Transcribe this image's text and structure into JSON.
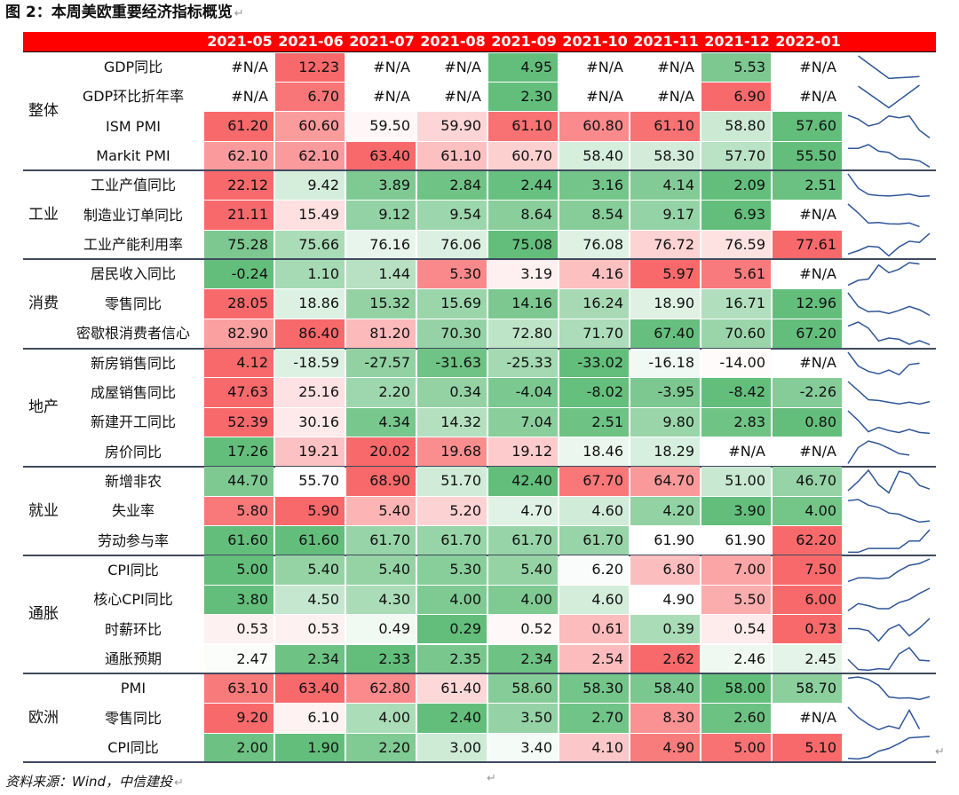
{
  "caption": "图 2：本周美欧重要经济指标概览",
  "paragraph_mark": "↵",
  "source_note": "资料来源：Wind，中信建投",
  "months": [
    "2021-05",
    "2021-06",
    "2021-07",
    "2021-08",
    "2021-09",
    "2021-10",
    "2021-11",
    "2021-12",
    "2022-01"
  ],
  "groups": [
    {
      "name": "整体",
      "rows": [
        {
          "label": "GDP同比",
          "values": [
            "#N/A",
            "12.23",
            "#N/A",
            "#N/A",
            "4.95",
            "#N/A",
            "#N/A",
            "5.53",
            "#N/A"
          ]
        },
        {
          "label": "GDP环比折年率",
          "values": [
            "#N/A",
            "6.70",
            "#N/A",
            "#N/A",
            "2.30",
            "#N/A",
            "#N/A",
            "6.90",
            "#N/A"
          ]
        },
        {
          "label": "ISM PMI",
          "values": [
            "61.20",
            "60.60",
            "59.50",
            "59.90",
            "61.10",
            "60.80",
            "61.10",
            "58.80",
            "57.60"
          ]
        },
        {
          "label": "Markit PMI",
          "values": [
            "62.10",
            "62.10",
            "63.40",
            "61.10",
            "60.70",
            "58.40",
            "58.30",
            "57.70",
            "55.50"
          ]
        }
      ]
    },
    {
      "name": "工业",
      "rows": [
        {
          "label": "工业产值同比",
          "values": [
            "22.12",
            "9.42",
            "3.89",
            "2.84",
            "2.44",
            "3.16",
            "4.14",
            "2.09",
            "2.51"
          ]
        },
        {
          "label": "制造业订单同比",
          "values": [
            "21.11",
            "15.49",
            "9.12",
            "9.54",
            "8.64",
            "8.54",
            "9.17",
            "6.93",
            "#N/A"
          ]
        },
        {
          "label": "工业产能利用率",
          "values": [
            "75.28",
            "75.66",
            "76.16",
            "76.06",
            "75.08",
            "76.08",
            "76.72",
            "76.59",
            "77.61"
          ]
        }
      ]
    },
    {
      "name": "消费",
      "rows": [
        {
          "label": "居民收入同比",
          "values": [
            "-0.24",
            "1.10",
            "1.44",
            "5.30",
            "3.19",
            "4.16",
            "5.97",
            "5.61",
            "#N/A"
          ]
        },
        {
          "label": "零售同比",
          "values": [
            "28.05",
            "18.86",
            "15.32",
            "15.69",
            "14.16",
            "16.24",
            "18.90",
            "16.71",
            "12.96"
          ]
        },
        {
          "label": "密歇根消费者信心",
          "values": [
            "82.90",
            "86.40",
            "81.20",
            "70.30",
            "72.80",
            "71.70",
            "67.40",
            "70.60",
            "67.20"
          ]
        }
      ]
    },
    {
      "name": "地产",
      "rows": [
        {
          "label": "新房销售同比",
          "values": [
            "4.12",
            "-18.59",
            "-27.57",
            "-31.63",
            "-25.33",
            "-33.02",
            "-16.18",
            "-14.00",
            "#N/A"
          ]
        },
        {
          "label": "成屋销售同比",
          "values": [
            "47.63",
            "25.16",
            "2.20",
            "0.34",
            "-4.04",
            "-8.02",
            "-3.95",
            "-8.42",
            "-2.26"
          ]
        },
        {
          "label": "新建开工同比",
          "values": [
            "52.39",
            "30.16",
            "4.34",
            "14.32",
            "7.04",
            "2.51",
            "9.80",
            "2.83",
            "0.80"
          ]
        },
        {
          "label": "房价同比",
          "values": [
            "17.26",
            "19.21",
            "20.02",
            "19.68",
            "19.12",
            "18.46",
            "18.29",
            "#N/A",
            "#N/A"
          ]
        }
      ]
    },
    {
      "name": "就业",
      "rows": [
        {
          "label": "新增非农",
          "values": [
            "44.70",
            "55.70",
            "68.90",
            "51.70",
            "42.40",
            "67.70",
            "64.70",
            "51.00",
            "46.70"
          ]
        },
        {
          "label": "失业率",
          "values": [
            "5.80",
            "5.90",
            "5.40",
            "5.20",
            "4.70",
            "4.60",
            "4.20",
            "3.90",
            "4.00"
          ]
        },
        {
          "label": "劳动参与率",
          "values": [
            "61.60",
            "61.60",
            "61.70",
            "61.70",
            "61.70",
            "61.70",
            "61.90",
            "61.90",
            "62.20"
          ]
        }
      ]
    },
    {
      "name": "通胀",
      "rows": [
        {
          "label": "CPI同比",
          "values": [
            "5.00",
            "5.40",
            "5.40",
            "5.30",
            "5.40",
            "6.20",
            "6.80",
            "7.00",
            "7.50"
          ]
        },
        {
          "label": "核心CPI同比",
          "values": [
            "3.80",
            "4.50",
            "4.30",
            "4.00",
            "4.00",
            "4.60",
            "4.90",
            "5.50",
            "6.00"
          ]
        },
        {
          "label": "时薪环比",
          "values": [
            "0.53",
            "0.53",
            "0.49",
            "0.29",
            "0.52",
            "0.61",
            "0.39",
            "0.54",
            "0.73"
          ]
        },
        {
          "label": "通胀预期",
          "values": [
            "2.47",
            "2.34",
            "2.33",
            "2.35",
            "2.34",
            "2.54",
            "2.62",
            "2.46",
            "2.45"
          ]
        }
      ]
    },
    {
      "name": "欧洲",
      "rows": [
        {
          "label": "PMI",
          "values": [
            "63.10",
            "63.40",
            "62.80",
            "61.40",
            "58.60",
            "58.30",
            "58.40",
            "58.00",
            "58.70"
          ]
        },
        {
          "label": "零售同比",
          "values": [
            "9.20",
            "6.10",
            "4.00",
            "2.40",
            "3.50",
            "2.70",
            "8.30",
            "2.60",
            "#N/A"
          ]
        },
        {
          "label": "CPI同比",
          "values": [
            "2.00",
            "1.90",
            "2.20",
            "3.00",
            "3.40",
            "4.10",
            "4.90",
            "5.00",
            "5.10"
          ]
        }
      ]
    }
  ],
  "colors": {
    "header_bg": "#ff0000",
    "header_text": "#ffffff",
    "high_end": "#f8696b",
    "low_end": "#63be7b",
    "mid": "#ffffff",
    "sparkline": "#2f5597"
  }
}
